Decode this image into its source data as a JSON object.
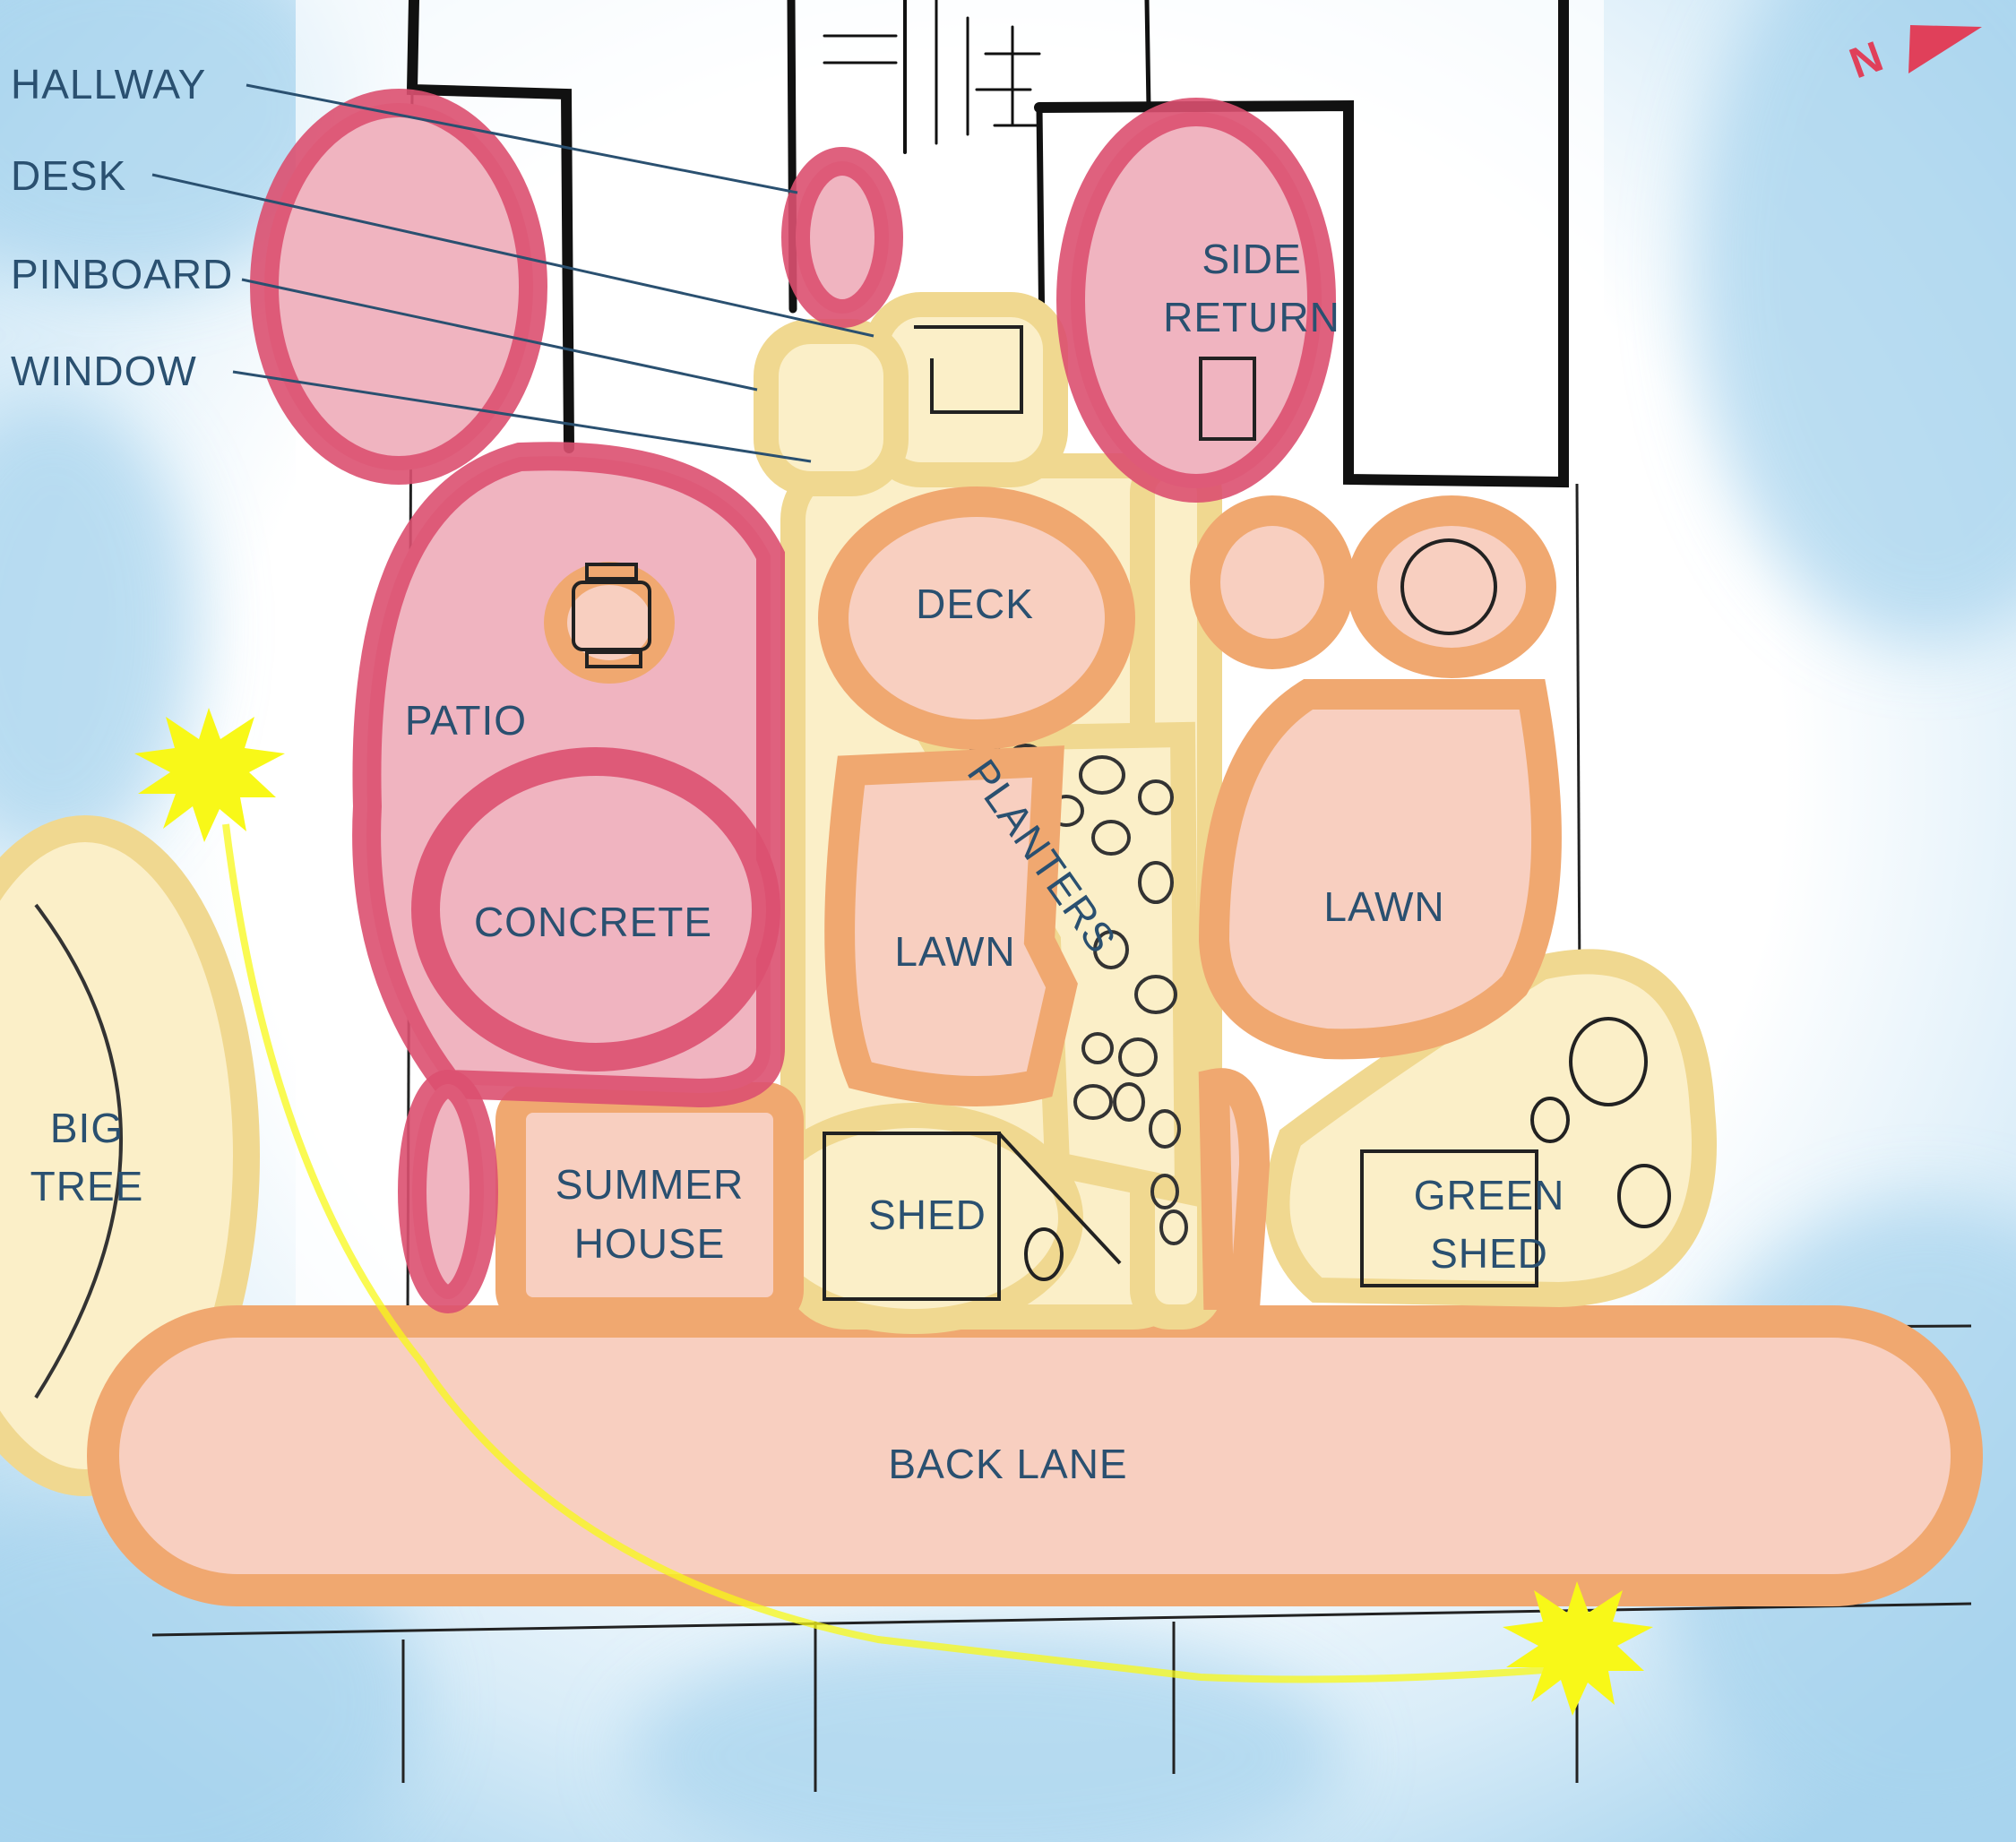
{
  "callouts": {
    "hallway": "HALLWAY",
    "desk": "DESK",
    "pinboard": "PINBOARD",
    "window": "WINDOW"
  },
  "zones": {
    "side_return_line1": "SIDE",
    "side_return_line2": "RETURN",
    "deck": "DECK",
    "patio": "PATIO",
    "planters": "PLANTERS",
    "concrete": "CONCRETE",
    "lawn_middle": "LAWN",
    "lawn_right": "LAWN",
    "big_tree_line1": "BIG",
    "big_tree_line2": "TREE",
    "summer_house_line1": "SUMMER",
    "summer_house_line2": "HOUSE",
    "shed": "SHED",
    "green_shed_line1": "GREEN",
    "green_shed_line2": "SHED",
    "back_lane": "BACK LANE"
  },
  "compass": {
    "label": "N",
    "color": "#e0405a"
  },
  "colors": {
    "red_zone": "#dc5070",
    "red_fill": "#f0b4c0",
    "orange_zone": "#f0a870",
    "orange_fill": "#f8cfc0",
    "yellow_zone": "#f0d890",
    "yellow_fill": "#fbefc8",
    "sun": "#f8f818",
    "sky": "#a8d4ee"
  }
}
